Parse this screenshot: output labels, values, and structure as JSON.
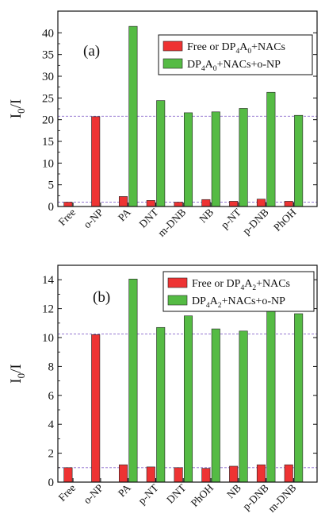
{
  "colors": {
    "series1": "#ee3333",
    "series2": "#55bb44",
    "refline": "#8866cc",
    "axis": "#111111"
  },
  "chart_data": [
    {
      "type": "bar",
      "panel_label": "(a)",
      "ylabel": "I",
      "ylabel_sub": "0",
      "ylabel_tail": "/I",
      "ylim": [
        0,
        45
      ],
      "yticks": [
        0,
        5,
        10,
        15,
        20,
        25,
        30,
        35,
        40
      ],
      "reference_lines": [
        1,
        20.8
      ],
      "categories": [
        "Free",
        "o-NP",
        "PA",
        "DNT",
        "m-DNB",
        "NB",
        "p-NT",
        "p-DNB",
        "PhOH"
      ],
      "series": [
        {
          "name": "Free or DP4A0+NACs",
          "legend_parts": [
            "Free or DP",
            "4",
            "A",
            "0",
            "+NACs"
          ],
          "values": [
            1.0,
            20.7,
            2.3,
            1.4,
            1.0,
            1.6,
            1.2,
            1.7,
            1.2
          ]
        },
        {
          "name": "DP4A0+NACs+o-NP",
          "legend_parts": [
            "DP",
            "4",
            "A",
            "0",
            "+NACs+o-NP"
          ],
          "values": [
            null,
            null,
            41.5,
            24.4,
            21.6,
            21.8,
            22.6,
            26.3,
            21.0
          ]
        }
      ],
      "legend_position": "top-right"
    },
    {
      "type": "bar",
      "panel_label": "(b)",
      "ylabel": "I",
      "ylabel_sub": "0",
      "ylabel_tail": "/I",
      "ylim": [
        0,
        15
      ],
      "yticks": [
        0,
        2,
        4,
        6,
        8,
        10,
        12,
        14
      ],
      "reference_lines": [
        1,
        10.25
      ],
      "categories": [
        "Free",
        "o-NP",
        "PA",
        "p-NT",
        "DNT",
        "PhOH",
        "NB",
        "p-DNB",
        "m-DNB"
      ],
      "series": [
        {
          "name": "Free or DP4A2+NACs",
          "legend_parts": [
            "Free or DP",
            "4",
            "A",
            "2",
            "+NACs"
          ],
          "values": [
            1.0,
            10.2,
            1.2,
            1.05,
            1.0,
            0.95,
            1.1,
            1.2,
            1.2
          ]
        },
        {
          "name": "DP4A2+NACs+o-NP",
          "legend_parts": [
            "DP",
            "4",
            "A",
            "2",
            "+NACs+o-NP"
          ],
          "values": [
            null,
            null,
            14.05,
            10.7,
            11.5,
            10.6,
            10.45,
            12.1,
            11.65
          ]
        }
      ],
      "legend_position": "top-right"
    }
  ]
}
